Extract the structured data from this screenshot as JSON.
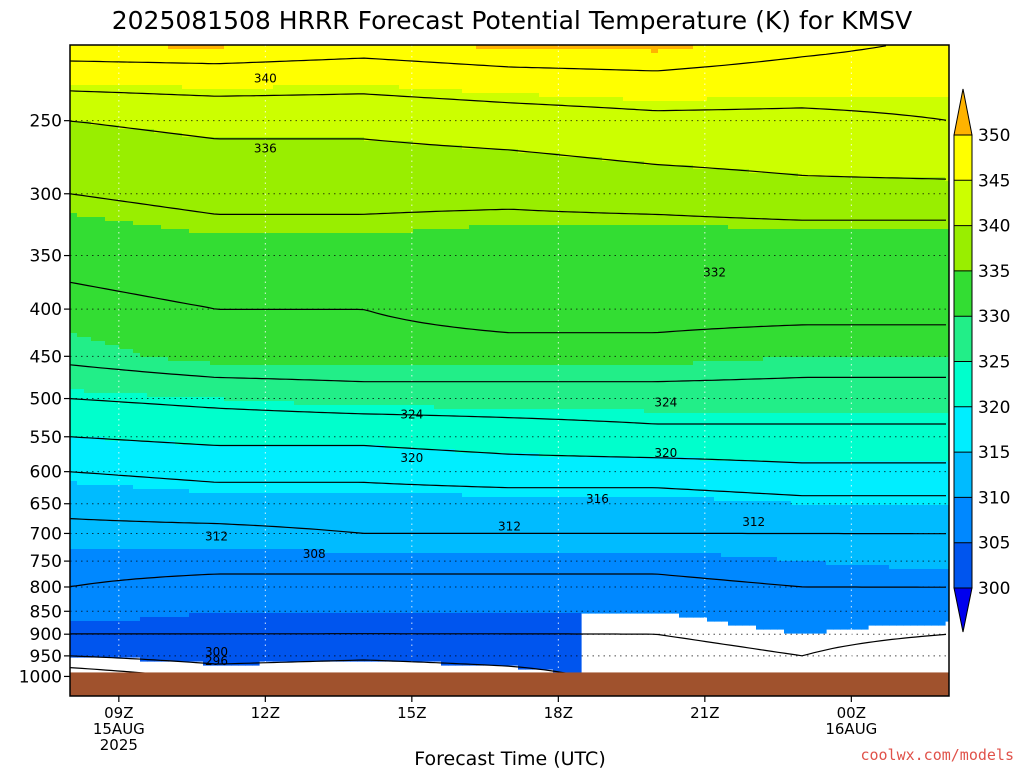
{
  "chart_data": {
    "type": "heatmap",
    "title": "2025081508 HRRR Forecast Potential Temperature (K) for KMSV",
    "xlabel": "Forecast Time (UTC)",
    "credit": "coolwx.com/models",
    "y_axis": {
      "label": "",
      "scale": "log-pressure",
      "inverted": true,
      "range_hPa": [
        1050,
        200
      ],
      "ticks": [
        "250",
        "300",
        "350",
        "400",
        "450",
        "500",
        "550",
        "600",
        "650",
        "700",
        "750",
        "800",
        "850",
        "900",
        "950",
        "1000"
      ]
    },
    "x_axis": {
      "range_hours": [
        0,
        18
      ],
      "ticks": [
        {
          "lines": [
            "09Z",
            "15AUG",
            "2025"
          ]
        },
        {
          "lines": [
            "12Z"
          ]
        },
        {
          "lines": [
            "15Z"
          ]
        },
        {
          "lines": [
            "18Z"
          ]
        },
        {
          "lines": [
            "21Z"
          ]
        },
        {
          "lines": [
            "00Z",
            "16AUG"
          ]
        }
      ]
    },
    "grid": "dotted",
    "colorbar": {
      "ticks": [
        "350",
        "345",
        "340",
        "335",
        "330",
        "325",
        "320",
        "315",
        "310",
        "305",
        "300"
      ],
      "bins": [
        {
          "range": [
            350,
            355
          ],
          "color": "#ffb300"
        },
        {
          "range": [
            345,
            350
          ],
          "color": "#ffff00"
        },
        {
          "range": [
            340,
            345
          ],
          "color": "#ccff00"
        },
        {
          "range": [
            335,
            340
          ],
          "color": "#99ee00"
        },
        {
          "range": [
            330,
            335
          ],
          "color": "#33dd33"
        },
        {
          "range": [
            325,
            330
          ],
          "color": "#22ee88"
        },
        {
          "range": [
            320,
            325
          ],
          "color": "#00ffcc"
        },
        {
          "range": [
            315,
            320
          ],
          "color": "#00eeff"
        },
        {
          "range": [
            310,
            315
          ],
          "color": "#00bbff"
        },
        {
          "range": [
            305,
            310
          ],
          "color": "#0088ff"
        },
        {
          "range": [
            300,
            305
          ],
          "color": "#0055ee"
        },
        {
          "range": [
            295,
            300
          ],
          "color": "#0000ee"
        }
      ]
    },
    "ground_color": "#a0522d",
    "contour_labels": [
      {
        "text": "340"
      },
      {
        "text": "336"
      },
      {
        "text": "332"
      },
      {
        "text": "324"
      },
      {
        "text": "324"
      },
      {
        "text": "320"
      },
      {
        "text": "320"
      },
      {
        "text": "316"
      },
      {
        "text": "312"
      },
      {
        "text": "312"
      },
      {
        "text": "312"
      },
      {
        "text": "308"
      },
      {
        "text": "300"
      },
      {
        "text": "296"
      }
    ],
    "series": [
      {
        "values": [
          [
            1000,
            293
          ],
          [
            950,
            300
          ],
          [
            900,
            304
          ],
          [
            850,
            306
          ],
          [
            800,
            308
          ],
          [
            750,
            309
          ],
          [
            700,
            311
          ],
          [
            650,
            313
          ],
          [
            600,
            316
          ],
          [
            550,
            320
          ],
          [
            500,
            324
          ],
          [
            450,
            329
          ],
          [
            400,
            331
          ],
          [
            350,
            333
          ],
          [
            300,
            336
          ],
          [
            250,
            340
          ],
          [
            200,
            352
          ]
        ]
      },
      {
        "values": [
          [
            1000,
            297
          ],
          [
            950,
            302
          ],
          [
            900,
            304
          ],
          [
            850,
            305
          ],
          [
            800,
            307
          ],
          [
            750,
            309
          ],
          [
            700,
            311
          ],
          [
            650,
            314
          ],
          [
            600,
            317
          ],
          [
            550,
            321
          ],
          [
            500,
            325
          ],
          [
            450,
            331
          ],
          [
            400,
            332
          ],
          [
            350,
            334
          ],
          [
            300,
            337
          ],
          [
            250,
            341
          ],
          [
            200,
            352
          ]
        ]
      },
      {
        "values": [
          [
            1000,
            296
          ],
          [
            950,
            301
          ],
          [
            900,
            304
          ],
          [
            850,
            305
          ],
          [
            800,
            307
          ],
          [
            750,
            309
          ],
          [
            700,
            312
          ],
          [
            650,
            314
          ],
          [
            600,
            317
          ],
          [
            550,
            321
          ],
          [
            500,
            326
          ],
          [
            450,
            331
          ],
          [
            400,
            332
          ],
          [
            350,
            334
          ],
          [
            300,
            337
          ],
          [
            250,
            341
          ],
          [
            200,
            351
          ]
        ]
      },
      {
        "values": [
          [
            1000,
            298
          ],
          [
            950,
            302
          ],
          [
            900,
            304
          ],
          [
            850,
            305
          ],
          [
            800,
            307
          ],
          [
            750,
            309
          ],
          [
            700,
            312
          ],
          [
            650,
            314
          ],
          [
            600,
            318
          ],
          [
            550,
            322
          ],
          [
            500,
            326
          ],
          [
            450,
            331
          ],
          [
            400,
            333
          ],
          [
            350,
            333
          ],
          [
            300,
            337
          ],
          [
            250,
            342
          ],
          [
            200,
            352
          ]
        ]
      },
      {
        "values": [
          [
            1000,
            302
          ],
          [
            950,
            303
          ],
          [
            900,
            304
          ],
          [
            850,
            305
          ],
          [
            800,
            307
          ],
          [
            750,
            309
          ],
          [
            700,
            312
          ],
          [
            650,
            314
          ],
          [
            600,
            318
          ],
          [
            550,
            323
          ],
          [
            500,
            326
          ],
          [
            450,
            331
          ],
          [
            400,
            333
          ],
          [
            350,
            332
          ],
          [
            300,
            338
          ],
          [
            250,
            343
          ],
          [
            200,
            352
          ]
        ]
      },
      {
        "values": [
          [
            1000,
            303
          ],
          [
            950,
            304
          ],
          [
            900,
            305
          ],
          [
            850,
            306
          ],
          [
            800,
            308
          ],
          [
            750,
            310
          ],
          [
            700,
            312
          ],
          [
            650,
            315
          ],
          [
            600,
            319
          ],
          [
            550,
            323
          ],
          [
            500,
            326
          ],
          [
            450,
            330
          ],
          [
            400,
            333
          ],
          [
            350,
            332
          ],
          [
            300,
            339
          ],
          [
            250,
            343
          ],
          [
            200,
            350
          ]
        ]
      },
      {
        "values": [
          [
            1000,
            301
          ],
          [
            950,
            302
          ],
          [
            900,
            304
          ],
          [
            850,
            306
          ],
          [
            800,
            308
          ],
          [
            750,
            311
          ],
          [
            700,
            312
          ],
          [
            650,
            315
          ],
          [
            600,
            319
          ],
          [
            550,
            323
          ],
          [
            500,
            326
          ],
          [
            450,
            330
          ],
          [
            400,
            333
          ],
          [
            350,
            332
          ],
          [
            300,
            339
          ],
          [
            250,
            344
          ],
          [
            200,
            348
          ]
        ]
      }
    ]
  }
}
